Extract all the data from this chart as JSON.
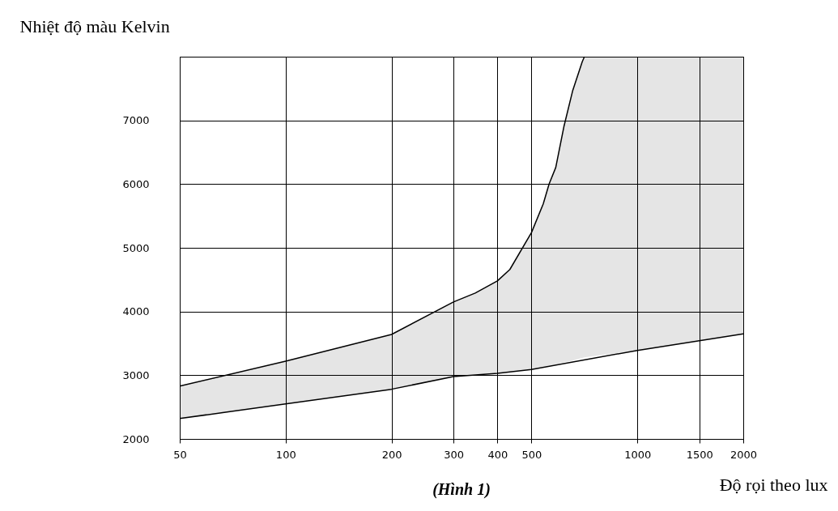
{
  "chart_data": {
    "type": "line",
    "ylabel": "Nhiệt độ màu Kelvin",
    "xlabel": "Độ rọi theo lux",
    "annotations": [
      "(Hình 1)"
    ],
    "log": "x",
    "grid": true,
    "line_style": "solid",
    "xlim": [
      50,
      2000
    ],
    "xticks": [
      50,
      100,
      200,
      300,
      400,
      500,
      1000,
      1500,
      2000
    ],
    "ylim": [
      2000,
      8000
    ],
    "yticks": [
      2000,
      3000,
      4000,
      5000,
      6000,
      7000,
      {
        "value": 8000,
        "label": null
      }
    ],
    "series": [
      {
        "color": "#000000",
        "x": [
          50,
          100,
          200,
          300,
          400,
          500,
          1000,
          1500,
          2000
        ],
        "values": [
          2320,
          2550,
          2780,
          2980,
          3030,
          3090,
          3390,
          3540,
          3650
        ]
      },
      {
        "color": "#000000",
        "x": [
          50,
          100,
          200,
          300,
          346,
          400,
          434,
          500,
          540,
          561,
          586,
          618,
          655,
          697,
          707,
          1000,
          1500,
          2000
        ],
        "values": [
          2830,
          3220,
          3640,
          4150,
          4290,
          4480,
          4660,
          5240,
          5690,
          6000,
          6260,
          6900,
          7470,
          7920,
          8000,
          null,
          null,
          null
        ],
        "lower": [
          2320,
          2550,
          2780,
          2980,
          3005,
          3030,
          3050,
          3090,
          3130,
          3150,
          3170,
          3200,
          3230,
          3270,
          3280,
          3390,
          3540,
          3650
        ],
        "upper": [
          2830,
          3220,
          3640,
          4150,
          4290,
          4480,
          4660,
          5240,
          5690,
          6000,
          6260,
          6900,
          7470,
          7920,
          8000,
          8000,
          8000,
          8000
        ]
      }
    ]
  }
}
